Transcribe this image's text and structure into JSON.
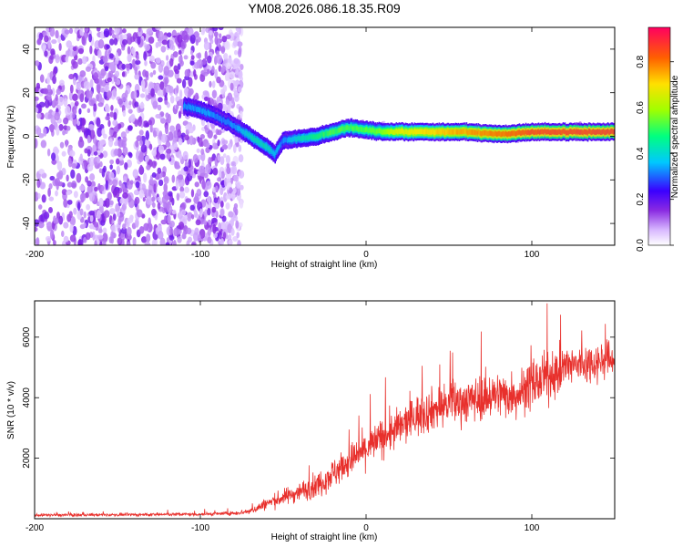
{
  "title": "YM08.2026.086.18.35.R09",
  "colors": {
    "line": "#e8302c",
    "frame": "#000000"
  },
  "chart_data": [
    {
      "type": "heatmap",
      "xlabel": "Height of straight line (km)",
      "ylabel": "Frequency (Hz)",
      "xlim": [
        -200,
        150
      ],
      "ylim": [
        -50,
        50
      ],
      "x_ticks": [
        -200,
        -100,
        0,
        100
      ],
      "x_tick_labels": [
        "-200",
        "-100",
        "0",
        "100"
      ],
      "y_ticks": [
        -40,
        -20,
        0,
        20,
        40
      ],
      "y_tick_labels": [
        "-40",
        "-20",
        "0",
        "20",
        "40"
      ],
      "colorbar": {
        "label": "Normalized spectral amplitude",
        "range": [
          0,
          0.95
        ],
        "ticks": [
          0,
          0.2,
          0.4,
          0.6,
          0.8
        ],
        "tick_labels": [
          "0.0",
          "0.2",
          "0.4",
          "0.6",
          "0.8"
        ]
      },
      "noise_region_x": [
        -200,
        -75
      ],
      "ridge": [
        {
          "x": -110,
          "f": 14,
          "a": 0.35
        },
        {
          "x": -100,
          "f": 12,
          "a": 0.38
        },
        {
          "x": -90,
          "f": 9,
          "a": 0.35
        },
        {
          "x": -80,
          "f": 5,
          "a": 0.35
        },
        {
          "x": -70,
          "f": 0,
          "a": 0.45
        },
        {
          "x": -60,
          "f": -5,
          "a": 0.45
        },
        {
          "x": -55,
          "f": -8,
          "a": 0.4
        },
        {
          "x": -50,
          "f": -2,
          "a": 0.35
        },
        {
          "x": -40,
          "f": -1,
          "a": 0.45
        },
        {
          "x": -30,
          "f": 0,
          "a": 0.5
        },
        {
          "x": -20,
          "f": 2,
          "a": 0.55
        },
        {
          "x": -10,
          "f": 4,
          "a": 0.55
        },
        {
          "x": 0,
          "f": 3,
          "a": 0.55
        },
        {
          "x": 10,
          "f": 2,
          "a": 0.6
        },
        {
          "x": 20,
          "f": 2,
          "a": 0.7
        },
        {
          "x": 40,
          "f": 2,
          "a": 0.75
        },
        {
          "x": 60,
          "f": 2,
          "a": 0.8
        },
        {
          "x": 80,
          "f": 1,
          "a": 0.85
        },
        {
          "x": 100,
          "f": 2,
          "a": 0.9
        },
        {
          "x": 120,
          "f": 2,
          "a": 0.92
        },
        {
          "x": 150,
          "f": 2,
          "a": 0.92
        }
      ]
    },
    {
      "type": "line",
      "xlabel": "Height of straight line (km)",
      "ylabel": "SNR (10 * v/v)",
      "xlim": [
        -200,
        150
      ],
      "ylim": [
        0,
        7200
      ],
      "x_ticks": [
        -200,
        -100,
        0,
        100
      ],
      "x_tick_labels": [
        "-200",
        "-100",
        "0",
        "100"
      ],
      "y_ticks": [
        2000,
        4000,
        6000
      ],
      "y_tick_labels": [
        "2000",
        "4000",
        "6000"
      ],
      "series": [
        {
          "name": "SNR",
          "x": [
            -200,
            -150,
            -100,
            -80,
            -70,
            -60,
            -50,
            -40,
            -30,
            -20,
            -10,
            0,
            10,
            20,
            30,
            40,
            50,
            60,
            70,
            80,
            90,
            100,
            110,
            120,
            130,
            140,
            150
          ],
          "mean": [
            120,
            130,
            150,
            180,
            250,
            500,
            700,
            900,
            1100,
            1500,
            1900,
            2300,
            2700,
            3000,
            3400,
            3600,
            3800,
            3900,
            4000,
            4100,
            4100,
            4400,
            4700,
            5000,
            5100,
            5200,
            5300
          ],
          "spread": [
            80,
            80,
            90,
            110,
            180,
            350,
            450,
            550,
            700,
            850,
            950,
            1050,
            1100,
            1150,
            1200,
            1200,
            1250,
            1250,
            1250,
            1300,
            1300,
            1350,
            1350,
            1300,
            1200,
            1100,
            1000
          ]
        }
      ]
    }
  ]
}
